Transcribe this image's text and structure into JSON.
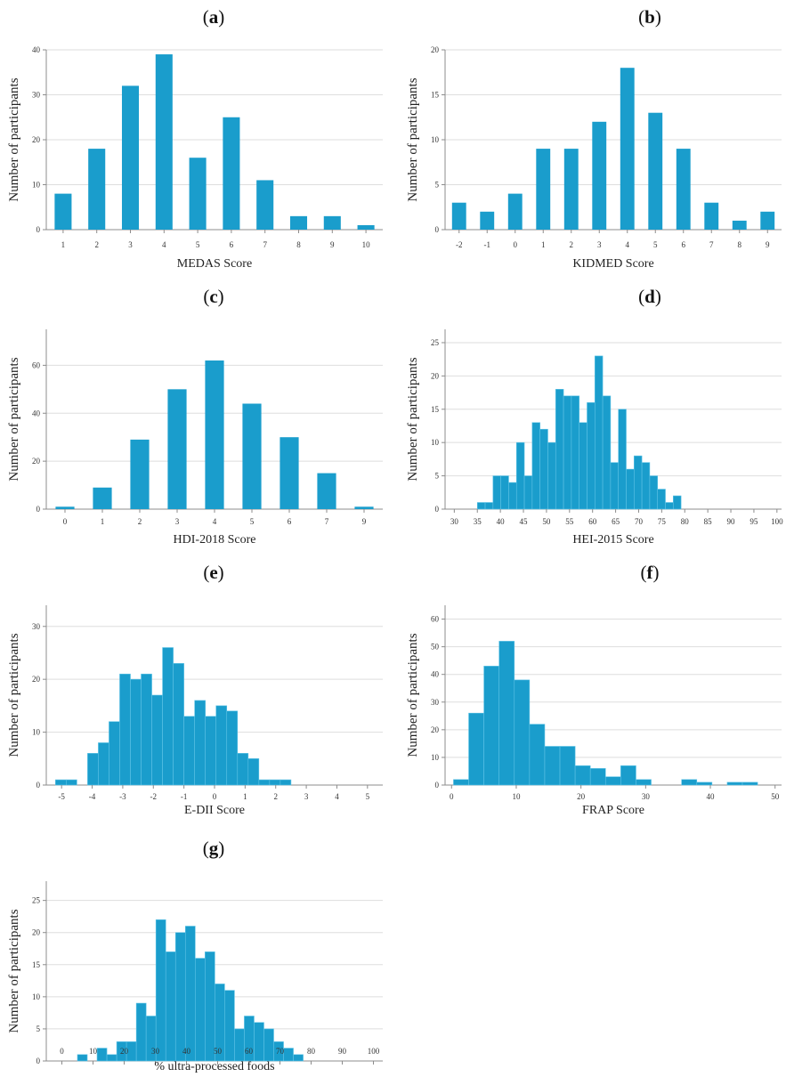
{
  "colors": {
    "bar": "#1a9dcc",
    "bar_edge": "#5fc3e6",
    "grid": "#dedede",
    "axis": "#8c8c8c"
  },
  "chart_data": [
    {
      "id": "a",
      "letter": "a",
      "type": "bar",
      "categories": [
        "1",
        "2",
        "3",
        "4",
        "5",
        "6",
        "7",
        "8",
        "9",
        "10"
      ],
      "values": [
        8,
        18,
        32,
        39,
        16,
        25,
        11,
        3,
        3,
        1
      ],
      "xlabel": "MEDAS Score",
      "ylabel": "Number of participants",
      "ylim": [
        0,
        40
      ],
      "yticks": [
        0,
        10,
        20,
        30,
        40
      ],
      "grid": true
    },
    {
      "id": "b",
      "letter": "b",
      "type": "bar",
      "categories": [
        "-2",
        "-1",
        "0",
        "1",
        "2",
        "3",
        "4",
        "5",
        "6",
        "7",
        "8",
        "9"
      ],
      "values": [
        3,
        2,
        4,
        9,
        9,
        12,
        18,
        13,
        9,
        3,
        1,
        2
      ],
      "xlabel": "KIDMED Score",
      "ylabel": "Number of participants",
      "ylim": [
        0,
        20
      ],
      "yticks": [
        0,
        5,
        10,
        15,
        20
      ],
      "grid": true
    },
    {
      "id": "c",
      "letter": "c",
      "type": "bar",
      "categories": [
        "0",
        "1",
        "2",
        "3",
        "4",
        "5",
        "6",
        "7",
        "9"
      ],
      "values": [
        1,
        9,
        29,
        50,
        62,
        44,
        30,
        15,
        1
      ],
      "xlabel": "HDI-2018 Score",
      "ylabel": "Number of participants",
      "ylim": [
        0,
        75
      ],
      "yticks": [
        0,
        20,
        40,
        60
      ],
      "grid": true
    },
    {
      "id": "d",
      "letter": "d",
      "type": "histogram",
      "bin_start": 35,
      "bin_width": 1.7,
      "values": [
        1,
        1,
        5,
        5,
        4,
        10,
        5,
        13,
        12,
        10,
        18,
        17,
        17,
        13,
        16,
        23,
        17,
        7,
        15,
        6,
        8,
        7,
        5,
        3,
        1,
        2
      ],
      "xlim": [
        28,
        101
      ],
      "xticks": [
        30,
        35,
        40,
        45,
        50,
        55,
        60,
        65,
        70,
        75,
        80,
        85,
        90,
        95,
        100
      ],
      "xlabel": "HEI-2015 Score",
      "ylabel": "Number of participants",
      "ylim": [
        0,
        27
      ],
      "yticks": [
        0,
        5,
        10,
        15,
        20,
        25
      ],
      "grid": true
    },
    {
      "id": "e",
      "letter": "e",
      "type": "histogram",
      "bin_start": -5.2,
      "bin_width": 0.35,
      "values": [
        1,
        1,
        0,
        6,
        8,
        12,
        21,
        20,
        21,
        17,
        26,
        23,
        13,
        16,
        13,
        15,
        14,
        6,
        5,
        1,
        1,
        1
      ],
      "xlim": [
        -5.5,
        5.5
      ],
      "xticks": [
        -5,
        -4,
        -3,
        -2,
        -1,
        0,
        1,
        2,
        3,
        4,
        5
      ],
      "xlabel": "E-DII Score",
      "ylabel": "Number of participants",
      "ylim": [
        0,
        34
      ],
      "yticks": [
        0,
        10,
        20,
        30
      ],
      "grid": true
    },
    {
      "id": "f",
      "letter": "f",
      "type": "histogram",
      "bin_start": 0.3,
      "bin_width": 2.35,
      "values": [
        2,
        26,
        43,
        52,
        38,
        22,
        14,
        14,
        7,
        6,
        3,
        7,
        2,
        0,
        0,
        2,
        1,
        0,
        1,
        1
      ],
      "xlim": [
        -1,
        51
      ],
      "xticks": [
        0,
        10,
        20,
        30,
        40,
        50
      ],
      "xlabel": "FRAP Score",
      "ylabel": "Number of participants",
      "ylim": [
        0,
        65
      ],
      "yticks": [
        0,
        10,
        20,
        30,
        40,
        50,
        60
      ],
      "grid": true
    },
    {
      "id": "g",
      "letter": "g",
      "type": "histogram",
      "bin_start": 5,
      "bin_width": 3.15,
      "values": [
        1,
        0,
        2,
        1,
        3,
        3,
        9,
        7,
        22,
        17,
        20,
        21,
        16,
        17,
        12,
        11,
        5,
        7,
        6,
        5,
        3,
        2,
        1
      ],
      "xlim": [
        -5,
        103
      ],
      "xticks": [
        0,
        10,
        20,
        30,
        40,
        50,
        60,
        70,
        80,
        90,
        100
      ],
      "xlabel": "% ultra-processed foods",
      "ylabel": "Number of participants",
      "ylim": [
        0,
        28
      ],
      "yticks": [
        0,
        5,
        10,
        15,
        20,
        25
      ],
      "grid": true
    }
  ]
}
